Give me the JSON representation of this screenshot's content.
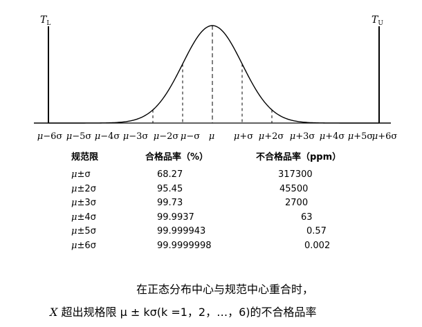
{
  "diagram": {
    "limit_lower": {
      "main": "T",
      "sub": "L"
    },
    "limit_upper": {
      "main": "T",
      "sub": "U"
    },
    "tick_labels": [
      "μ−6σ",
      "μ−5σ",
      "μ−4σ",
      "μ−3σ",
      "μ−2σ",
      "μ−σ",
      "μ",
      "μ+σ",
      "μ+2σ",
      "μ+3σ",
      "μ+4σ",
      "μ+5σ",
      "μ+6σ"
    ]
  },
  "table": {
    "headers": [
      "规范限",
      "合格品率（%）",
      "不合格品率（ppm）"
    ],
    "rows": [
      {
        "limit": "μ±σ",
        "yield": "68.27",
        "defect_ppm": "317300"
      },
      {
        "limit": "μ±2σ",
        "yield": "95.45",
        "defect_ppm": "45500"
      },
      {
        "limit": "μ±3σ",
        "yield": "99.73",
        "defect_ppm": "2700"
      },
      {
        "limit": "μ±4σ",
        "yield": "99.9937",
        "defect_ppm": "63"
      },
      {
        "limit": "μ±5σ",
        "yield": "99.999943",
        "defect_ppm": "0.57"
      },
      {
        "limit": "μ±6σ",
        "yield": "99.9999998",
        "defect_ppm": "0.002"
      }
    ]
  },
  "caption": {
    "line1": "在正态分布中心与规范中心重合时，",
    "line2_var": "X",
    "line2_text": " 超出规格限 μ ± kσ(k =1，2，…，6)的不合格品率"
  }
}
